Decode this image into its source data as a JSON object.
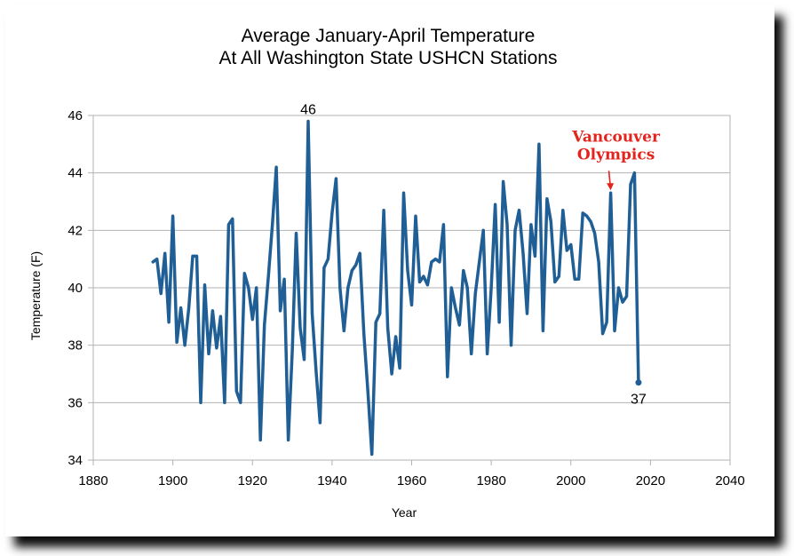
{
  "chart_data": {
    "type": "line",
    "title": "Average January-April Temperature",
    "subtitle": "At All Washington State USHCN Stations",
    "xlabel": "Year",
    "ylabel": "Temperature (F)",
    "xlim": [
      1880,
      2040
    ],
    "ylim": [
      34,
      46
    ],
    "x_ticks": [
      "1880",
      "1900",
      "1920",
      "1940",
      "1960",
      "1980",
      "2000",
      "2020",
      "2040"
    ],
    "y_ticks": [
      "34",
      "36",
      "38",
      "40",
      "42",
      "44",
      "46"
    ],
    "grid": "horizontal",
    "legend": "none",
    "series": [
      {
        "color": "#1f5f96",
        "points": [
          [
            1895,
            40.9
          ],
          [
            1896,
            41.0
          ],
          [
            1897,
            39.8
          ],
          [
            1898,
            41.2
          ],
          [
            1899,
            38.8
          ],
          [
            1900,
            42.5
          ],
          [
            1901,
            38.1
          ],
          [
            1902,
            39.3
          ],
          [
            1903,
            38.0
          ],
          [
            1904,
            39.3
          ],
          [
            1905,
            41.1
          ],
          [
            1906,
            41.1
          ],
          [
            1907,
            36.0
          ],
          [
            1908,
            40.1
          ],
          [
            1909,
            37.7
          ],
          [
            1910,
            39.2
          ],
          [
            1911,
            37.9
          ],
          [
            1912,
            39.0
          ],
          [
            1913,
            36.0
          ],
          [
            1914,
            42.2
          ],
          [
            1915,
            42.4
          ],
          [
            1916,
            36.4
          ],
          [
            1917,
            36.0
          ],
          [
            1918,
            40.5
          ],
          [
            1919,
            40.0
          ],
          [
            1920,
            38.9
          ],
          [
            1921,
            40.0
          ],
          [
            1922,
            34.7
          ],
          [
            1923,
            38.7
          ],
          [
            1924,
            40.4
          ],
          [
            1925,
            42.2
          ],
          [
            1926,
            44.2
          ],
          [
            1927,
            39.2
          ],
          [
            1928,
            40.3
          ],
          [
            1929,
            34.7
          ],
          [
            1930,
            37.8
          ],
          [
            1931,
            41.9
          ],
          [
            1932,
            38.6
          ],
          [
            1933,
            37.5
          ],
          [
            1934,
            45.8
          ],
          [
            1935,
            39.1
          ],
          [
            1936,
            37.1
          ],
          [
            1937,
            35.3
          ],
          [
            1938,
            40.7
          ],
          [
            1939,
            41.0
          ],
          [
            1940,
            42.6
          ],
          [
            1941,
            43.8
          ],
          [
            1942,
            40.0
          ],
          [
            1943,
            38.5
          ],
          [
            1944,
            40.0
          ],
          [
            1945,
            40.6
          ],
          [
            1946,
            40.8
          ],
          [
            1947,
            41.2
          ],
          [
            1948,
            38.4
          ],
          [
            1949,
            36.4
          ],
          [
            1950,
            34.2
          ],
          [
            1951,
            38.8
          ],
          [
            1952,
            39.1
          ],
          [
            1953,
            42.7
          ],
          [
            1954,
            38.6
          ],
          [
            1955,
            37.0
          ],
          [
            1956,
            38.3
          ],
          [
            1957,
            37.2
          ],
          [
            1958,
            43.3
          ],
          [
            1959,
            40.6
          ],
          [
            1960,
            39.4
          ],
          [
            1961,
            42.5
          ],
          [
            1962,
            40.2
          ],
          [
            1963,
            40.4
          ],
          [
            1964,
            40.1
          ],
          [
            1965,
            40.9
          ],
          [
            1966,
            41.0
          ],
          [
            1967,
            40.9
          ],
          [
            1968,
            42.2
          ],
          [
            1969,
            36.9
          ],
          [
            1970,
            40.0
          ],
          [
            1971,
            39.3
          ],
          [
            1972,
            38.7
          ],
          [
            1973,
            40.6
          ],
          [
            1974,
            40.0
          ],
          [
            1975,
            37.7
          ],
          [
            1976,
            39.8
          ],
          [
            1977,
            40.9
          ],
          [
            1978,
            42.0
          ],
          [
            1979,
            37.7
          ],
          [
            1980,
            40.0
          ],
          [
            1981,
            42.9
          ],
          [
            1982,
            38.8
          ],
          [
            1983,
            43.7
          ],
          [
            1984,
            42.2
          ],
          [
            1985,
            38.0
          ],
          [
            1986,
            42.0
          ],
          [
            1987,
            42.7
          ],
          [
            1988,
            41.2
          ],
          [
            1989,
            39.1
          ],
          [
            1990,
            42.2
          ],
          [
            1991,
            41.1
          ],
          [
            1992,
            45.0
          ],
          [
            1993,
            38.5
          ],
          [
            1994,
            43.1
          ],
          [
            1995,
            42.3
          ],
          [
            1996,
            40.2
          ],
          [
            1997,
            40.4
          ],
          [
            1998,
            42.7
          ],
          [
            1999,
            41.3
          ],
          [
            2000,
            41.5
          ],
          [
            2001,
            40.3
          ],
          [
            2002,
            40.3
          ],
          [
            2003,
            42.6
          ],
          [
            2004,
            42.5
          ],
          [
            2005,
            42.3
          ],
          [
            2006,
            41.9
          ],
          [
            2007,
            40.9
          ],
          [
            2008,
            38.4
          ],
          [
            2009,
            38.8
          ],
          [
            2010,
            43.3
          ],
          [
            2011,
            38.5
          ],
          [
            2012,
            40.0
          ],
          [
            2013,
            39.5
          ],
          [
            2014,
            39.7
          ],
          [
            2015,
            43.6
          ],
          [
            2016,
            44.0
          ],
          [
            2017,
            36.7
          ]
        ]
      }
    ],
    "data_labels": [
      {
        "x": 1934,
        "y": 45.8,
        "text": "46",
        "position": "above"
      },
      {
        "x": 2017,
        "y": 36.7,
        "text": "37",
        "position": "below"
      }
    ],
    "annotation": {
      "lines": [
        "Vancouver",
        "Olympics"
      ],
      "x": 2010,
      "y": 43.3,
      "color": "#e3231c"
    }
  }
}
